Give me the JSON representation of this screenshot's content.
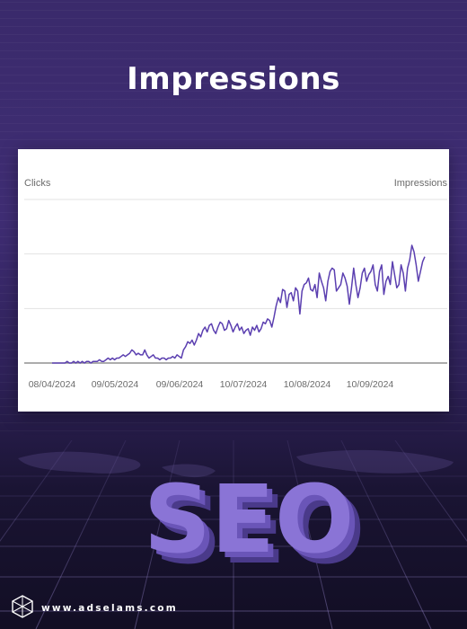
{
  "header": {
    "title": "Impressions"
  },
  "brand": {
    "url": "www.adselams.com",
    "logo_icon": "hexagon-logo-icon",
    "accent": "#5a3fa8"
  },
  "hero": {
    "text": "SEO",
    "color": "#8a74d6"
  },
  "chart_data": {
    "type": "line",
    "title": "",
    "left_axis_label": "Clicks",
    "right_axis_label": "Impressions",
    "xlabel": "",
    "ylabel": "",
    "grid": true,
    "line_color": "#5b3fb0",
    "x_tick_labels": [
      "08/04/2024",
      "09/05/2024",
      "09/06/2024",
      "10/07/2024",
      "10/08/2024",
      "10/09/2024"
    ],
    "ylim": [
      0,
      100
    ],
    "series": [
      {
        "values": [
          0,
          0,
          0,
          0,
          0,
          0,
          0,
          1,
          0,
          0,
          1,
          0,
          1,
          0,
          1,
          0,
          1,
          1,
          0,
          1,
          1,
          1,
          2,
          1,
          1,
          2,
          3,
          2,
          3,
          2,
          3,
          3,
          4,
          5,
          4,
          5,
          6,
          8,
          7,
          5,
          6,
          5,
          5,
          8,
          5,
          3,
          4,
          5,
          3,
          3,
          2,
          3,
          3,
          2,
          3,
          3,
          4,
          3,
          5,
          4,
          3,
          8,
          10,
          13,
          12,
          14,
          11,
          14,
          18,
          16,
          20,
          22,
          19,
          23,
          24,
          20,
          18,
          22,
          25,
          24,
          20,
          21,
          26,
          23,
          19,
          22,
          24,
          20,
          22,
          18,
          20,
          21,
          17,
          22,
          20,
          23,
          19,
          21,
          25,
          24,
          27,
          26,
          22,
          28,
          35,
          40,
          37,
          45,
          44,
          34,
          42,
          43,
          38,
          46,
          44,
          30,
          44,
          48,
          49,
          52,
          45,
          44,
          48,
          40,
          55,
          50,
          46,
          38,
          50,
          56,
          58,
          57,
          44,
          46,
          48,
          55,
          52,
          47,
          36,
          46,
          58,
          48,
          40,
          46,
          55,
          58,
          50,
          54,
          56,
          60,
          48,
          44,
          56,
          60,
          42,
          50,
          53,
          48,
          62,
          54,
          46,
          48,
          60,
          55,
          44,
          58,
          63,
          72,
          68,
          60,
          50,
          56,
          62,
          65
        ]
      }
    ]
  }
}
